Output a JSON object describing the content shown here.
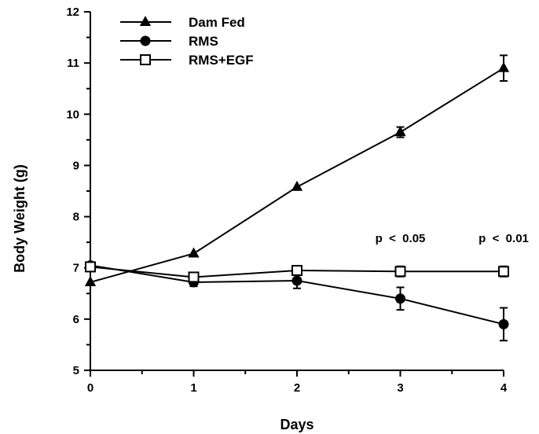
{
  "chart_data": {
    "type": "line",
    "xlabel": "Days",
    "ylabel": "Body Weight (g)",
    "x": [
      0,
      1,
      2,
      3,
      4
    ],
    "xlim": [
      0,
      4
    ],
    "ylim": [
      5,
      12
    ],
    "x_ticks": [
      "0",
      "1",
      "2",
      "3",
      "4"
    ],
    "y_ticks": [
      "5",
      "6",
      "7",
      "8",
      "9",
      "10",
      "11",
      "12"
    ],
    "grid": false,
    "legend_position": "top-left",
    "series": [
      {
        "name": "Dam Fed",
        "marker": "filled-triangle",
        "values": [
          6.72,
          7.28,
          8.58,
          9.65,
          10.9
        ],
        "errors": [
          0.05,
          0.05,
          0.05,
          0.1,
          0.25
        ]
      },
      {
        "name": "RMS",
        "marker": "filled-circle",
        "values": [
          7.05,
          6.72,
          6.75,
          6.4,
          5.9
        ],
        "errors": [
          0.05,
          0.08,
          0.15,
          0.22,
          0.32
        ]
      },
      {
        "name": "RMS+EGF",
        "marker": "open-square",
        "values": [
          7.02,
          6.82,
          6.95,
          6.93,
          6.93
        ],
        "errors": [
          0.05,
          0.05,
          0.05,
          0.1,
          0.1
        ]
      }
    ],
    "annotations": [
      {
        "text": "p  <  0.05",
        "x": 3,
        "y": 7.5
      },
      {
        "text": "p  <  0.01",
        "x": 4,
        "y": 7.5
      }
    ]
  }
}
